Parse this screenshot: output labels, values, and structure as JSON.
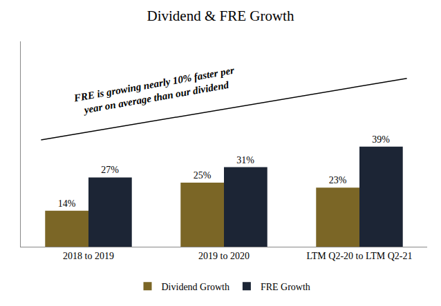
{
  "chart_data": {
    "type": "bar",
    "title": "Dividend & FRE Growth",
    "categories": [
      "2018 to 2019",
      "2019 to 2020",
      "LTM Q2-20 to LTM Q2-21"
    ],
    "series": [
      {
        "name": "Dividend Growth",
        "color": "#7B6626",
        "values": [
          14,
          25,
          23
        ],
        "value_labels": [
          "14%",
          "25%",
          "23%"
        ]
      },
      {
        "name": "FRE Growth",
        "color": "#1C2535",
        "values": [
          27,
          31,
          39
        ],
        "value_labels": [
          "27%",
          "31%",
          "39%"
        ]
      }
    ],
    "annotation": "FRE is growing nearly 10% faster per\nyear on average than our dividend",
    "ylim": [
      0,
      80
    ],
    "data_labels": true,
    "tick_labels": "x",
    "grid": false,
    "legend": "bottom"
  }
}
